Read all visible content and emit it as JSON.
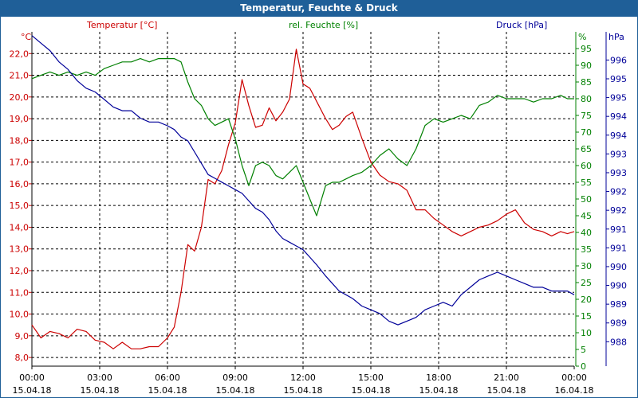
{
  "window": {
    "title": "Temperatur, Feuchte & Druck"
  },
  "chart_data": {
    "type": "line",
    "title": "Temperatur, Feuchte & Druck",
    "x_ticks": [
      {
        "time": "00:00",
        "date": "15.04.18"
      },
      {
        "time": "03:00",
        "date": "15.04.18"
      },
      {
        "time": "06:00",
        "date": "15.04.18"
      },
      {
        "time": "09:00",
        "date": "15.04.18"
      },
      {
        "time": "12:00",
        "date": "15.04.18"
      },
      {
        "time": "15:00",
        "date": "15.04.18"
      },
      {
        "time": "18:00",
        "date": "15.04.18"
      },
      {
        "time": "21:00",
        "date": "15.04.18"
      },
      {
        "time": "00:00",
        "date": "16.04.18"
      }
    ],
    "x_range_hours": [
      0,
      24
    ],
    "axes": {
      "temperature": {
        "label": "Temperatur [°C]",
        "unit": "°C",
        "ylim": [
          7.6,
          23.0
        ],
        "ticks": [
          "8,0",
          "9,0",
          "10,0",
          "11,0",
          "12,0",
          "13,0",
          "14,0",
          "15,0",
          "16,0",
          "17,0",
          "18,0",
          "19,0",
          "20,0",
          "21,0",
          "22,0"
        ],
        "color": "#cc0000"
      },
      "humidity": {
        "label": "rel. Feuchte [%]",
        "unit": "%",
        "ylim": [
          0,
          100
        ],
        "ticks": [
          "0",
          "5",
          "10",
          "15",
          "20",
          "25",
          "30",
          "35",
          "40",
          "45",
          "50",
          "55",
          "60",
          "65",
          "70",
          "75",
          "80",
          "85",
          "90",
          "95"
        ],
        "color": "#008000"
      },
      "pressure": {
        "label": "Druck [hPa]",
        "unit": "hPa",
        "ylim": [
          987.4,
          996.3
        ],
        "ticks": [
          "988",
          "989",
          "989",
          "990",
          "990",
          "991",
          "991",
          "992",
          "992",
          "993",
          "993",
          "994",
          "994",
          "995",
          "995",
          "996"
        ],
        "color": "#000099"
      }
    },
    "series": [
      {
        "name": "Temperatur",
        "axis": "temperature",
        "color": "#cc0000",
        "x": [
          0,
          0.4,
          0.8,
          1.2,
          1.6,
          2.0,
          2.4,
          2.8,
          3.2,
          3.6,
          4.0,
          4.4,
          4.8,
          5.2,
          5.6,
          6.0,
          6.3,
          6.6,
          6.9,
          7.2,
          7.5,
          7.8,
          8.1,
          8.4,
          8.7,
          9.0,
          9.3,
          9.6,
          9.9,
          10.2,
          10.5,
          10.8,
          11.1,
          11.4,
          11.7,
          12.0,
          12.3,
          12.6,
          13.0,
          13.3,
          13.6,
          13.9,
          14.2,
          14.6,
          15.0,
          15.4,
          15.8,
          16.2,
          16.6,
          17.0,
          17.4,
          17.8,
          18.2,
          18.6,
          19.0,
          19.4,
          19.8,
          20.2,
          20.6,
          21.0,
          21.4,
          21.8,
          22.2,
          22.6,
          23.0,
          23.4,
          23.7,
          24.0
        ],
        "values": [
          9.5,
          8.9,
          9.2,
          9.1,
          8.9,
          9.3,
          9.2,
          8.8,
          8.7,
          8.4,
          8.7,
          8.4,
          8.4,
          8.5,
          8.5,
          8.9,
          9.4,
          11.0,
          13.2,
          12.9,
          14.0,
          16.2,
          16.0,
          16.6,
          17.8,
          18.8,
          20.8,
          19.6,
          18.6,
          18.7,
          19.5,
          18.9,
          19.3,
          19.9,
          22.2,
          20.6,
          20.4,
          19.8,
          19.0,
          18.5,
          18.7,
          19.1,
          19.3,
          18.1,
          17.0,
          16.4,
          16.1,
          16.0,
          15.7,
          14.8,
          14.8,
          14.4,
          14.1,
          13.8,
          13.6,
          13.8,
          14.0,
          14.1,
          14.3,
          14.6,
          14.8,
          14.2,
          13.9,
          13.8,
          13.6,
          13.8,
          13.7,
          13.8
        ]
      },
      {
        "name": "rel. Feuchte",
        "axis": "humidity",
        "color": "#008000",
        "x": [
          0,
          0.4,
          0.8,
          1.2,
          1.6,
          2.0,
          2.4,
          2.8,
          3.2,
          3.6,
          4.0,
          4.4,
          4.8,
          5.2,
          5.6,
          6.0,
          6.3,
          6.6,
          6.9,
          7.2,
          7.5,
          7.8,
          8.1,
          8.4,
          8.7,
          9.0,
          9.3,
          9.6,
          9.9,
          10.2,
          10.5,
          10.8,
          11.1,
          11.4,
          11.7,
          12.0,
          12.3,
          12.6,
          13.0,
          13.3,
          13.6,
          13.9,
          14.2,
          14.6,
          15.0,
          15.4,
          15.8,
          16.2,
          16.6,
          17.0,
          17.4,
          17.8,
          18.2,
          18.6,
          19.0,
          19.4,
          19.8,
          20.2,
          20.6,
          21.0,
          21.4,
          21.8,
          22.2,
          22.6,
          23.0,
          23.4,
          23.7,
          24.0
        ],
        "values": [
          86,
          87,
          88,
          87,
          88,
          87,
          88,
          87,
          89,
          90,
          91,
          91,
          92,
          91,
          92,
          92,
          92,
          91,
          85,
          80,
          78,
          74,
          72,
          73,
          74,
          68,
          60,
          54,
          60,
          61,
          60,
          57,
          56,
          58,
          60,
          55,
          50,
          45,
          54,
          55,
          55,
          56,
          57,
          58,
          60,
          63,
          65,
          62,
          60,
          65,
          72,
          74,
          73,
          74,
          75,
          74,
          78,
          79,
          81,
          80,
          80,
          80,
          79,
          80,
          80,
          81,
          80,
          80
        ]
      },
      {
        "name": "Druck",
        "axis": "pressure",
        "color": "#000099",
        "x": [
          0,
          0.4,
          0.8,
          1.2,
          1.6,
          2.0,
          2.4,
          2.8,
          3.2,
          3.6,
          4.0,
          4.4,
          4.8,
          5.2,
          5.6,
          6.0,
          6.3,
          6.6,
          6.9,
          7.2,
          7.5,
          7.8,
          8.1,
          8.4,
          8.7,
          9.0,
          9.3,
          9.6,
          9.9,
          10.2,
          10.5,
          10.8,
          11.1,
          11.4,
          11.7,
          12.0,
          12.3,
          12.6,
          13.0,
          13.3,
          13.6,
          13.9,
          14.2,
          14.6,
          15.0,
          15.4,
          15.8,
          16.2,
          16.6,
          17.0,
          17.4,
          17.8,
          18.2,
          18.6,
          19.0,
          19.4,
          19.8,
          20.2,
          20.6,
          21.0,
          21.4,
          21.8,
          22.2,
          22.6,
          23.0,
          23.4,
          23.7,
          24.0
        ],
        "values": [
          996.2,
          996.0,
          995.8,
          995.5,
          995.3,
          995.0,
          994.8,
          994.7,
          994.5,
          994.3,
          994.2,
          994.2,
          994.0,
          993.9,
          993.9,
          993.8,
          993.7,
          993.5,
          993.4,
          993.1,
          992.8,
          992.5,
          992.4,
          992.3,
          992.2,
          992.1,
          992.0,
          991.8,
          991.6,
          991.5,
          991.3,
          991.0,
          990.8,
          990.7,
          990.6,
          990.5,
          990.3,
          990.1,
          989.8,
          989.6,
          989.4,
          989.3,
          989.2,
          989.0,
          988.9,
          988.8,
          988.6,
          988.5,
          988.6,
          988.7,
          988.9,
          989.0,
          989.1,
          989.0,
          989.3,
          989.5,
          989.7,
          989.8,
          989.9,
          989.8,
          989.7,
          989.6,
          989.5,
          989.5,
          989.4,
          989.4,
          989.4,
          989.3
        ]
      }
    ]
  }
}
